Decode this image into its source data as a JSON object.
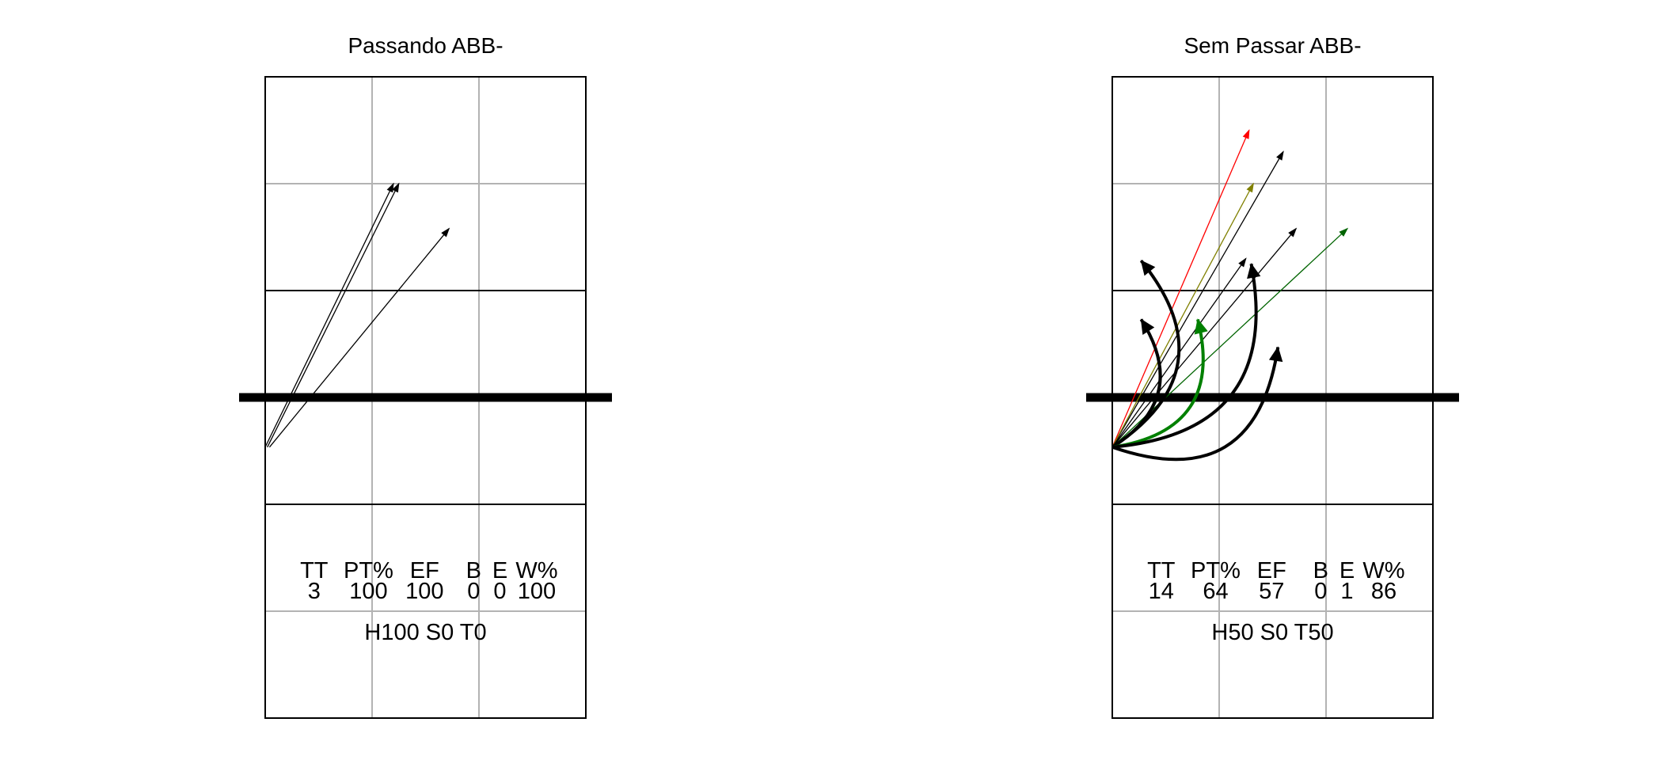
{
  "chart_data": [
    {
      "type": "diagram",
      "title": "Passando ABB-",
      "stats": {
        "headers": [
          "TT",
          "PT%",
          "EF",
          "B",
          "E",
          "W%"
        ],
        "values": [
          "3",
          "100",
          "100",
          "0",
          "0",
          "100"
        ]
      },
      "footer": "H100 S0 T0",
      "arrows": [
        {
          "start": [
            0.02,
            0.535
          ],
          "end": [
            1.25,
            3.0
          ],
          "color": "#000000",
          "curved": false
        },
        {
          "start": [
            0.0,
            0.535
          ],
          "end": [
            1.2,
            3.0
          ],
          "color": "#000000",
          "curved": false
        },
        {
          "start": [
            0.04,
            0.535
          ],
          "end": [
            1.72,
            2.58
          ],
          "color": "#000000",
          "curved": false
        }
      ]
    },
    {
      "type": "diagram",
      "title": "Sem Passar ABB-",
      "stats": {
        "headers": [
          "TT",
          "PT%",
          "EF",
          "B",
          "E",
          "W%"
        ],
        "values": [
          "14",
          "64",
          "57",
          "0",
          "1",
          "86"
        ]
      },
      "footer": "H50 S0 T50",
      "arrows": [
        {
          "start": [
            0.0,
            0.535
          ],
          "end": [
            1.28,
            3.5
          ],
          "color": "#ff0000",
          "curved": false
        },
        {
          "start": [
            0.0,
            0.535
          ],
          "end": [
            1.6,
            3.3
          ],
          "color": "#000000",
          "curved": false
        },
        {
          "start": [
            0.0,
            0.535
          ],
          "end": [
            1.32,
            3.0
          ],
          "color": "#808000",
          "curved": false
        },
        {
          "start": [
            0.0,
            0.535
          ],
          "end": [
            1.72,
            2.58
          ],
          "color": "#000000",
          "curved": false
        },
        {
          "start": [
            0.0,
            0.535
          ],
          "end": [
            2.2,
            2.58
          ],
          "color": "#006400",
          "curved": false
        },
        {
          "start": [
            0.0,
            0.535
          ],
          "end": [
            1.25,
            2.3
          ],
          "color": "#000000",
          "curved": false
        },
        {
          "start": [
            0.0,
            0.535
          ],
          "end": [
            0.27,
            2.28
          ],
          "color": "#000000",
          "curved": true,
          "bow": -0.55
        },
        {
          "start": [
            0.0,
            0.535
          ],
          "end": [
            0.27,
            1.73
          ],
          "color": "#000000",
          "curved": true,
          "bow": -0.5
        },
        {
          "start": [
            0.0,
            0.535
          ],
          "end": [
            0.8,
            1.73
          ],
          "color": "#008000",
          "curved": true,
          "bow": -0.55
        },
        {
          "start": [
            0.0,
            0.535
          ],
          "end": [
            1.3,
            2.25
          ],
          "color": "#000000",
          "curved": true,
          "bow": -0.55
        },
        {
          "start": [
            0.0,
            0.535
          ],
          "end": [
            1.55,
            1.47
          ],
          "color": "#000000",
          "curved": true,
          "bow": -0.6
        }
      ]
    }
  ]
}
